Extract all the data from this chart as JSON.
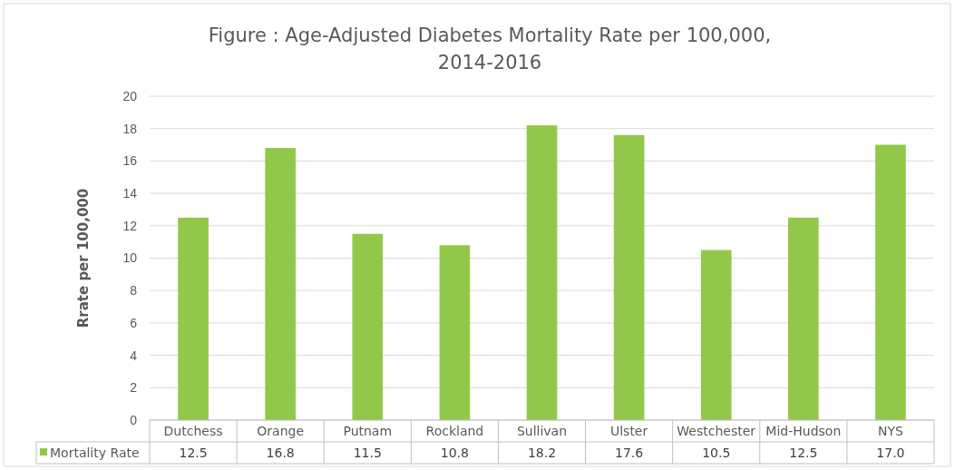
{
  "chart_data": {
    "type": "bar",
    "title": "Figure  : Age-Adjusted Diabetes Mortality Rate per 100,000, 2014-2016",
    "ylabel": "Rrate per 100,000",
    "categories": [
      "Dutchess",
      "Orange",
      "Putnam",
      "Rockland",
      "Sullivan",
      "Ulster",
      "Westchester",
      "Mid-Hudson",
      "NYS"
    ],
    "series": [
      {
        "name": "Mortality Rate",
        "color": "#92c84a",
        "values": [
          12.5,
          16.8,
          11.5,
          10.8,
          18.2,
          17.6,
          10.5,
          12.5,
          17.0
        ],
        "value_labels": [
          "12.5",
          "16.8",
          "11.5",
          "10.8",
          "18.2",
          "17.6",
          "10.5",
          "12.5",
          "17.0"
        ]
      }
    ],
    "ylim": [
      0,
      20
    ],
    "yticks": [
      0,
      2,
      4,
      6,
      8,
      10,
      12,
      14,
      16,
      18,
      20
    ],
    "grid": "y",
    "legend": "bottom"
  }
}
